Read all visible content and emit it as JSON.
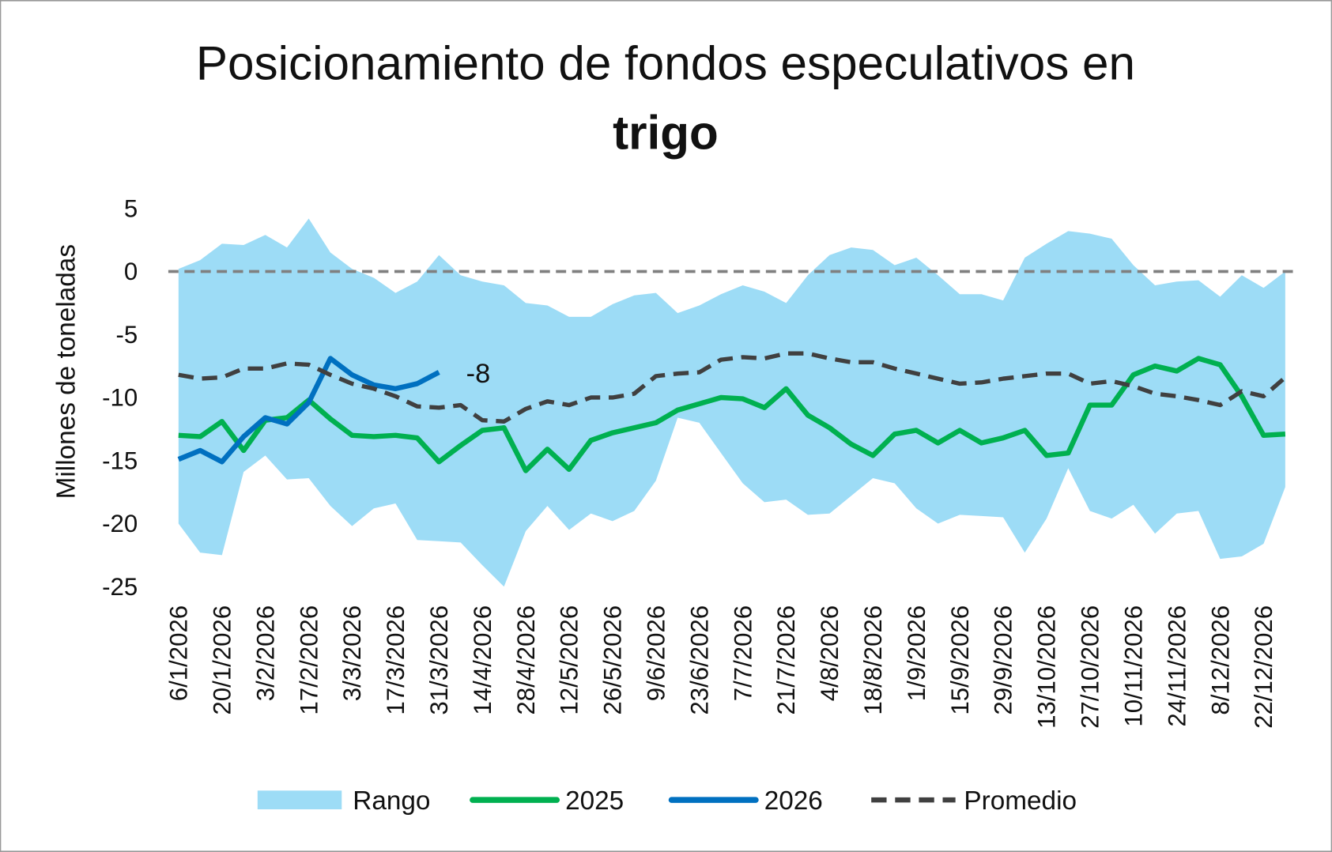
{
  "chart_data": {
    "type": "line",
    "title": "Posicionamiento de fondos especulativos en",
    "title_bold": "trigo",
    "ylabel": "Millones de toneladas",
    "categories": [
      "6/1/2026",
      null,
      "20/1/2026",
      null,
      "3/2/2026",
      null,
      "17/2/2026",
      null,
      "3/3/2026",
      null,
      "17/3/2026",
      null,
      "31/3/2026",
      null,
      "14/4/2026",
      null,
      "28/4/2026",
      null,
      "12/5/2026",
      null,
      "26/5/2026",
      null,
      "9/6/2026",
      null,
      "23/6/2026",
      null,
      "7/7/2026",
      null,
      "21/7/2026",
      null,
      "4/8/2026",
      null,
      "18/8/2026",
      null,
      "1/9/2026",
      null,
      "15/9/2026",
      null,
      "29/9/2026",
      null,
      "13/10/2026",
      null,
      "27/10/2026",
      null,
      "10/11/2026",
      null,
      "24/11/2026",
      null,
      "8/12/2026",
      null,
      "22/12/2026",
      null
    ],
    "ylim": [
      -25,
      5
    ],
    "yticks": [
      5,
      0,
      -5,
      -10,
      -15,
      -20,
      -25
    ],
    "zero_line": true,
    "legend": "bottom",
    "series": [
      {
        "name": "Rango",
        "kind": "range",
        "color": "#9ddcf6",
        "upper": [
          0.2,
          0.9,
          2.2,
          2.1,
          2.9,
          1.9,
          4.2,
          1.5,
          0.2,
          -0.5,
          -1.7,
          -0.8,
          1.3,
          -0.3,
          -0.8,
          -1.1,
          -2.5,
          -2.7,
          -3.6,
          -3.6,
          -2.6,
          -1.9,
          -1.7,
          -3.3,
          -2.7,
          -1.8,
          -1.1,
          -1.6,
          -2.5,
          -0.3,
          1.3,
          1.9,
          1.7,
          0.5,
          1.1,
          -0.3,
          -1.8,
          -1.8,
          -2.3,
          1.1,
          2.2,
          3.2,
          3.0,
          2.6,
          0.5,
          -1.1,
          -0.8,
          -0.7,
          -2.0,
          -0.3,
          -1.3,
          0
        ],
        "lower": [
          -20.0,
          -22.3,
          -22.5,
          -15.9,
          -14.6,
          -16.5,
          -16.4,
          -18.6,
          -20.2,
          -18.8,
          -18.4,
          -21.3,
          -21.4,
          -21.5,
          -23.3,
          -25.0,
          -20.6,
          -18.6,
          -20.5,
          -19.2,
          -19.8,
          -19.0,
          -16.6,
          -11.6,
          -12.0,
          -14.4,
          -16.8,
          -18.3,
          -18.1,
          -19.3,
          -19.2,
          -17.8,
          -16.4,
          -16.8,
          -18.8,
          -20.0,
          -19.3,
          -19.4,
          -19.5,
          -22.3,
          -19.6,
          -15.6,
          -19.0,
          -19.6,
          -18.5,
          -20.8,
          -19.2,
          -19.0,
          -22.8,
          -22.6,
          -21.6,
          -17.1
        ]
      },
      {
        "name": "2025",
        "kind": "line",
        "color": "#00b050",
        "dash": false,
        "values": [
          -13.0,
          -13.1,
          -11.9,
          -14.2,
          -11.8,
          -11.6,
          -10.2,
          -11.7,
          -13.0,
          -13.1,
          -13.0,
          -13.2,
          -15.1,
          -13.8,
          -12.6,
          -12.4,
          -15.8,
          -14.1,
          -15.7,
          -13.4,
          -12.8,
          -12.4,
          -12.0,
          -11.0,
          -10.5,
          -10.0,
          -10.1,
          -10.8,
          -9.3,
          -11.4,
          -12.4,
          -13.7,
          -14.6,
          -12.9,
          -12.6,
          -13.6,
          -12.6,
          -13.6,
          -13.2,
          -12.6,
          -14.6,
          -14.4,
          -10.6,
          -10.6,
          -8.2,
          -7.5,
          -7.9,
          -6.9,
          -7.4,
          -9.9,
          -13.0,
          -12.9
        ]
      },
      {
        "name": "2026",
        "kind": "line",
        "color": "#0070c0",
        "dash": false,
        "label_last": true,
        "values": [
          -14.9,
          -14.2,
          -15.1,
          -13.1,
          -11.6,
          -12.1,
          -10.4,
          -6.9,
          -8.2,
          -9.0,
          -9.3,
          -8.9,
          -8,
          null,
          null,
          null,
          null,
          null,
          null,
          null,
          null,
          null,
          null,
          null,
          null,
          null,
          null,
          null,
          null,
          null,
          null,
          null,
          null,
          null,
          null,
          null,
          null,
          null,
          null,
          null,
          null,
          null,
          null,
          null,
          null,
          null,
          null,
          null,
          null,
          null,
          null,
          null
        ]
      },
      {
        "name": "Promedio",
        "kind": "line",
        "color": "#404040",
        "dash": true,
        "values": [
          -8.2,
          -8.5,
          -8.4,
          -7.7,
          -7.7,
          -7.3,
          -7.4,
          -8.2,
          -8.9,
          -9.3,
          -9.9,
          -10.7,
          -10.8,
          -10.6,
          -11.8,
          -11.9,
          -10.9,
          -10.3,
          -10.6,
          -10.0,
          -10.0,
          -9.7,
          -8.3,
          -8.1,
          -8.0,
          -7.0,
          -6.8,
          -6.9,
          -6.5,
          -6.5,
          -6.9,
          -7.2,
          -7.2,
          -7.7,
          -8.1,
          -8.5,
          -8.9,
          -8.8,
          -8.5,
          -8.3,
          -8.1,
          -8.1,
          -8.9,
          -8.7,
          -9.1,
          -9.7,
          -9.9,
          -10.2,
          -10.6,
          -9.5,
          -9.9,
          -8.4
        ]
      }
    ]
  }
}
